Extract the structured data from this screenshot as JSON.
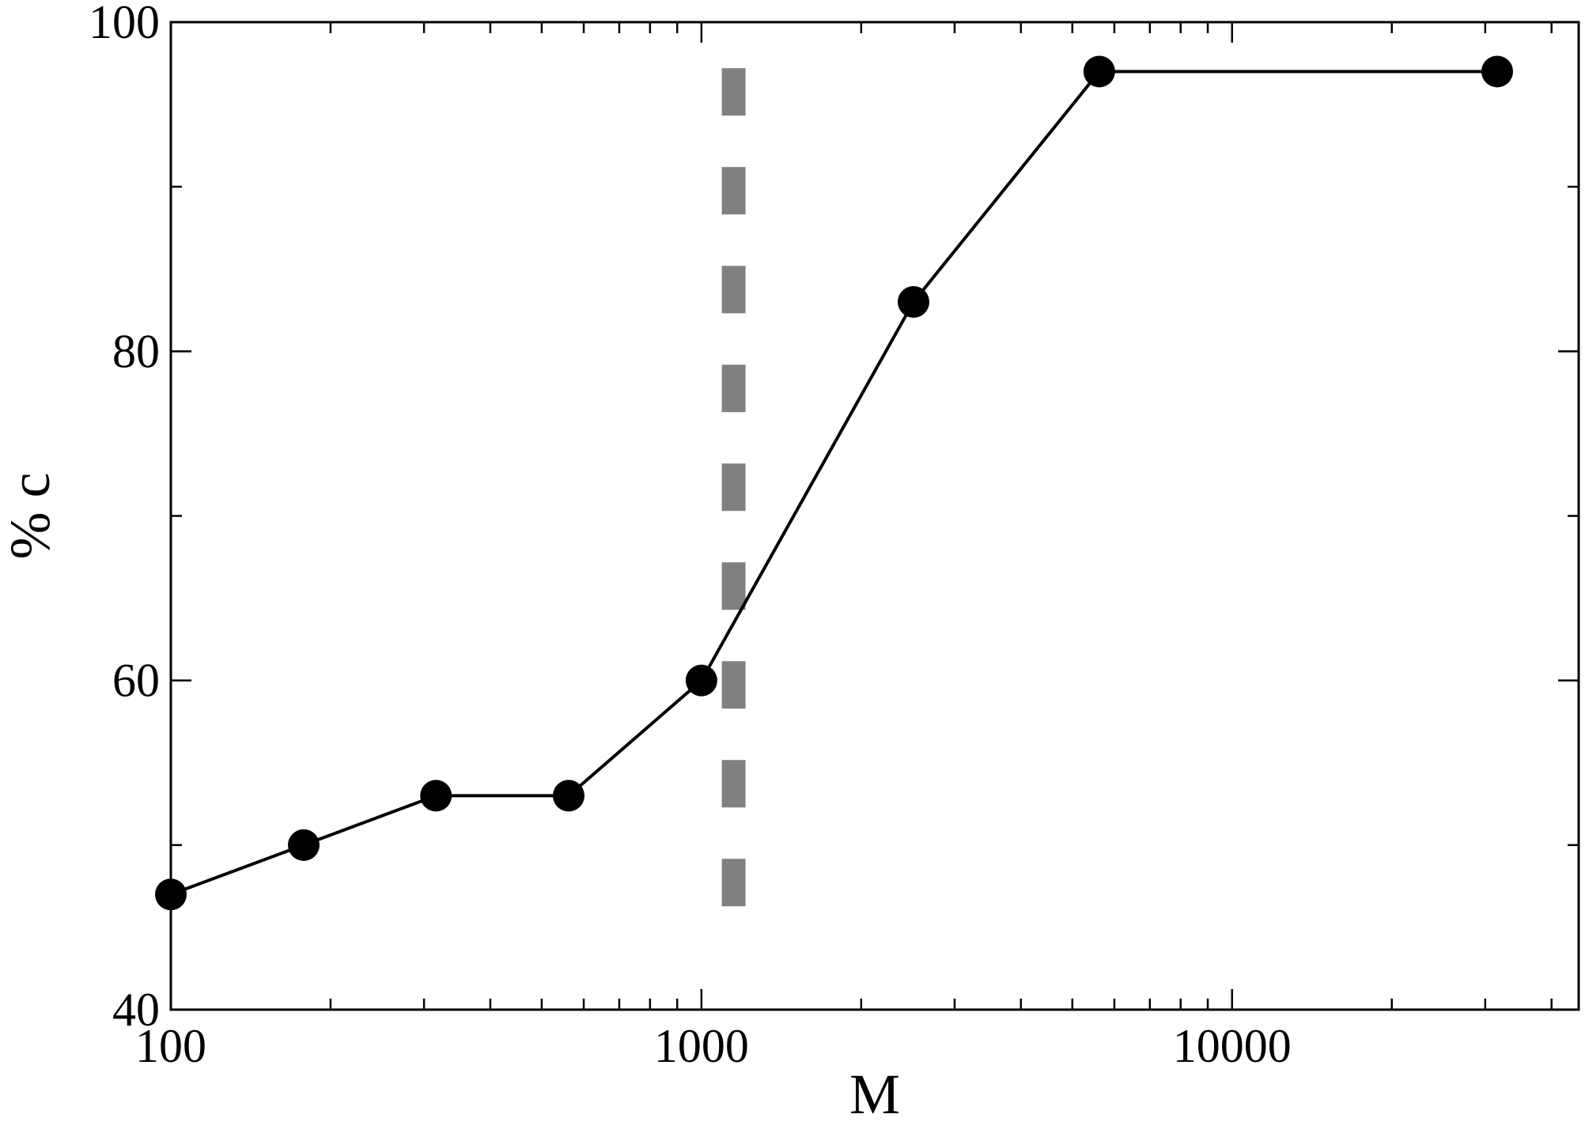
{
  "chart_data": {
    "type": "line",
    "xlabel": "M",
    "ylabel": "% c",
    "xscale": "log",
    "xlim": [
      100,
      45000
    ],
    "ylim": [
      40,
      100
    ],
    "x_ticks": [
      100,
      1000,
      10000
    ],
    "x_tick_labels": [
      "100",
      "1000",
      "10000"
    ],
    "y_ticks": [
      40,
      60,
      80,
      100
    ],
    "y_tick_labels": [
      "40",
      "60",
      "80",
      "100"
    ],
    "y_minor_ticks": [
      50,
      70,
      90
    ],
    "grid": false,
    "series": [
      {
        "x": [
          100,
          178,
          316,
          562,
          1000,
          2510,
          5620,
          31600
        ],
        "y": [
          47,
          50,
          53,
          53,
          60,
          83,
          97,
          97
        ],
        "color": "#000000",
        "marker": "circle"
      }
    ],
    "reference_line": {
      "orientation": "vertical",
      "x": 1150,
      "color": "#808080",
      "style": "dashed"
    }
  }
}
